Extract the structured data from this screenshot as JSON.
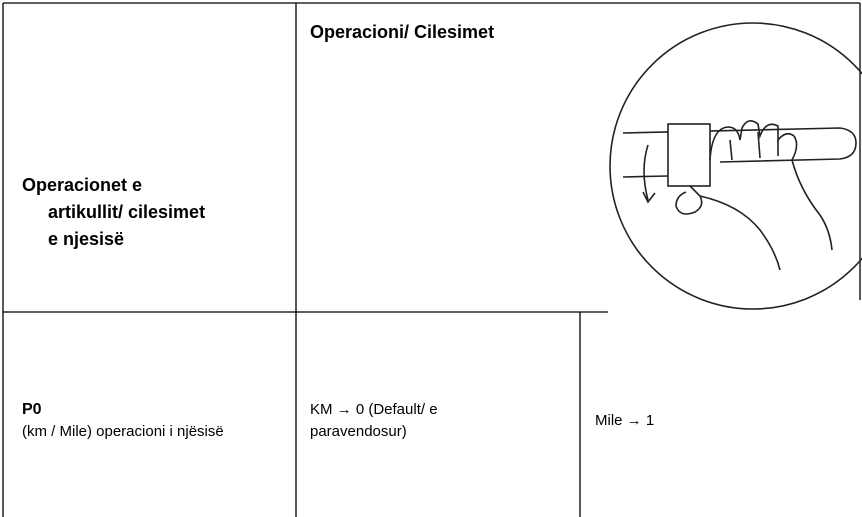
{
  "header": {
    "left": [
      "Operacionet e",
      "artikullit/ cilesimet",
      "e njesisë"
    ],
    "right": "Operacioni/  Cilesimet"
  },
  "rows": [
    {
      "code": "P0",
      "description": "(km / Mile) operacioni i njësisë",
      "option_0": [
        "KM → 0 (Default/ e",
        "paravendosur)"
      ],
      "option_1": "Mile → 1"
    }
  ]
}
